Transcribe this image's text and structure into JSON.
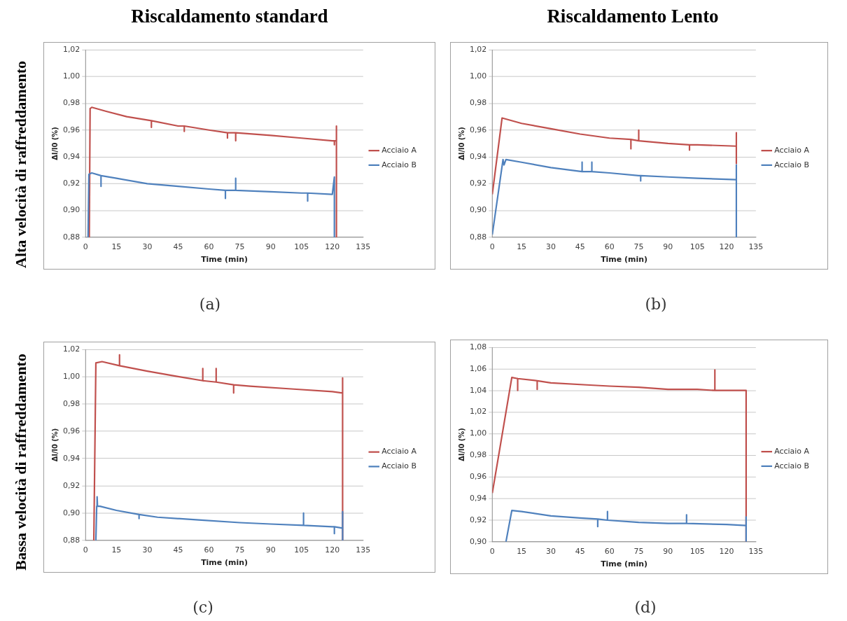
{
  "chart_data": [
    {
      "type": "line",
      "title": "Riscaldamento standard",
      "annotations": [
        "(a)",
        "Alta velocità di raffreddamento"
      ],
      "xlabel": "Time (min)",
      "ylabel": "Δl/l0 (%)",
      "xlim": [
        0,
        135
      ],
      "xticks": [
        0,
        15,
        30,
        45,
        60,
        75,
        90,
        105,
        120,
        135
      ],
      "ylim": [
        0.88,
        1.02
      ],
      "yticks": [
        {
          "value": 0.88,
          "label": "0,88"
        },
        {
          "value": 0.9,
          "label": "0,90"
        },
        {
          "value": 0.92,
          "label": "0,92"
        },
        {
          "value": 0.94,
          "label": "0,94"
        },
        {
          "value": 0.96,
          "label": "0,96"
        },
        {
          "value": 0.98,
          "label": "0,98"
        },
        {
          "value": 1.0,
          "label": "1,00"
        },
        {
          "value": 1.02,
          "label": "1,02"
        }
      ],
      "grid": "y",
      "legend": "right",
      "marker": "none",
      "series": [
        {
          "name": "Acciaio A",
          "color": "#c0504d",
          "x": [
            1.8,
            2.2,
            3,
            10,
            20,
            32,
            32,
            32,
            45,
            48,
            48,
            48,
            60,
            69,
            69,
            69,
            73,
            73,
            73,
            90,
            105,
            120,
            121,
            121,
            121,
            122,
            122,
            122
          ],
          "values": [
            0.88,
            0.976,
            0.977,
            0.974,
            0.97,
            0.967,
            0.962,
            0.967,
            0.963,
            0.963,
            0.959,
            0.963,
            0.96,
            0.958,
            0.954,
            0.958,
            0.958,
            0.952,
            0.958,
            0.956,
            0.954,
            0.952,
            0.952,
            0.949,
            0.952,
            0.952,
            0.963,
            0.88
          ]
        },
        {
          "name": "Acciaio B",
          "color": "#4f81bd",
          "x": [
            1.2,
            1.6,
            3,
            7.5,
            7.5,
            7.5,
            15,
            30,
            45,
            60,
            68,
            68,
            68,
            73,
            73,
            73,
            90,
            105,
            108,
            108,
            108,
            120,
            121,
            121
          ],
          "values": [
            0.88,
            0.927,
            0.928,
            0.926,
            0.918,
            0.926,
            0.924,
            0.92,
            0.918,
            0.916,
            0.915,
            0.909,
            0.915,
            0.915,
            0.924,
            0.915,
            0.914,
            0.913,
            0.913,
            0.907,
            0.913,
            0.912,
            0.925,
            0.88
          ]
        }
      ]
    },
    {
      "type": "line",
      "title": "Riscaldamento Lento",
      "annotations": [
        "(b)"
      ],
      "xlabel": "Time (min)",
      "ylabel": "Δl/l0 (%)",
      "xlim": [
        0,
        135
      ],
      "xticks": [
        0,
        15,
        30,
        45,
        60,
        75,
        90,
        105,
        120,
        135
      ],
      "ylim": [
        0.88,
        1.02
      ],
      "yticks": [
        {
          "value": 0.88,
          "label": "0,88"
        },
        {
          "value": 0.9,
          "label": "0,90"
        },
        {
          "value": 0.92,
          "label": "0,92"
        },
        {
          "value": 0.94,
          "label": "0,94"
        },
        {
          "value": 0.96,
          "label": "0,96"
        },
        {
          "value": 0.98,
          "label": "0,98"
        },
        {
          "value": 1.0,
          "label": "1,00"
        },
        {
          "value": 1.02,
          "label": "1,02"
        }
      ],
      "grid": "y",
      "legend": "right",
      "marker": "none",
      "series": [
        {
          "name": "Acciaio A",
          "color": "#c0504d",
          "x": [
            0,
            5,
            15,
            30,
            45,
            60,
            71,
            71,
            71,
            75,
            75,
            75,
            90,
            101,
            101,
            101,
            105,
            125,
            125,
            125
          ],
          "values": [
            0.912,
            0.969,
            0.965,
            0.961,
            0.957,
            0.954,
            0.953,
            0.946,
            0.953,
            0.952,
            0.96,
            0.952,
            0.95,
            0.949,
            0.945,
            0.949,
            0.949,
            0.948,
            0.958,
            0.935
          ]
        },
        {
          "name": "Acciaio B",
          "color": "#4f81bd",
          "x": [
            0,
            5.5,
            6,
            7,
            15,
            30,
            46,
            46,
            46,
            51,
            51,
            51,
            60,
            75,
            76,
            76,
            76,
            90,
            105,
            125,
            125,
            125
          ],
          "values": [
            0.882,
            0.938,
            0.934,
            0.938,
            0.936,
            0.932,
            0.929,
            0.936,
            0.929,
            0.929,
            0.936,
            0.929,
            0.928,
            0.926,
            0.926,
            0.922,
            0.926,
            0.925,
            0.924,
            0.923,
            0.934,
            0.88
          ]
        }
      ]
    },
    {
      "type": "line",
      "annotations": [
        "(c)",
        "Bassa velocità di raffreddamento"
      ],
      "xlabel": "Time (min)",
      "ylabel": "Δl/l0 (%)",
      "xlim": [
        0,
        135
      ],
      "xticks": [
        0,
        15,
        30,
        45,
        60,
        75,
        90,
        105,
        120,
        135
      ],
      "ylim": [
        0.88,
        1.02
      ],
      "yticks": [
        {
          "value": 0.88,
          "label": "0,88"
        },
        {
          "value": 0.9,
          "label": "0,90"
        },
        {
          "value": 0.92,
          "label": "0,92"
        },
        {
          "value": 0.94,
          "label": "0,94"
        },
        {
          "value": 0.96,
          "label": "0,96"
        },
        {
          "value": 0.98,
          "label": "0,98"
        },
        {
          "value": 1.0,
          "label": "1,00"
        },
        {
          "value": 1.02,
          "label": "1,02"
        }
      ],
      "grid": "y",
      "legend": "right",
      "marker": "none",
      "series": [
        {
          "name": "Acciaio A",
          "color": "#c0504d",
          "x": [
            4,
            5,
            8,
            16.5,
            16.5,
            16.5,
            30,
            45,
            57,
            57,
            57,
            63.5,
            63.5,
            63.5,
            72,
            72,
            72,
            80,
            100,
            120,
            125,
            125,
            125
          ],
          "values": [
            0.88,
            1.01,
            1.011,
            1.008,
            1.016,
            1.008,
            1.004,
            1.0,
            0.997,
            1.006,
            0.997,
            0.996,
            1.006,
            0.996,
            0.994,
            0.988,
            0.994,
            0.993,
            0.991,
            0.989,
            0.988,
            0.999,
            0.88
          ]
        },
        {
          "name": "Acciaio B",
          "color": "#4f81bd",
          "x": [
            5,
            5.4,
            5.6,
            5.8,
            7,
            15,
            26,
            26,
            26,
            35,
            55,
            75,
            90,
            106,
            106,
            106,
            120,
            121,
            121,
            121,
            125,
            125,
            125
          ],
          "values": [
            0.88,
            0.905,
            0.912,
            0.905,
            0.905,
            0.902,
            0.899,
            0.896,
            0.899,
            0.897,
            0.895,
            0.893,
            0.892,
            0.891,
            0.9,
            0.891,
            0.89,
            0.89,
            0.885,
            0.89,
            0.889,
            0.901,
            0.88
          ]
        }
      ]
    },
    {
      "type": "line",
      "annotations": [
        "(d)"
      ],
      "xlabel": "Time (min)",
      "ylabel": "Δl/l0 (%)",
      "xlim": [
        0,
        135
      ],
      "xticks": [
        0,
        15,
        30,
        45,
        60,
        75,
        90,
        105,
        120,
        135
      ],
      "ylim": [
        0.9,
        1.08
      ],
      "yticks": [
        {
          "value": 0.9,
          "label": "0,90"
        },
        {
          "value": 0.92,
          "label": "0,92"
        },
        {
          "value": 0.94,
          "label": "0,94"
        },
        {
          "value": 0.96,
          "label": "0,96"
        },
        {
          "value": 0.98,
          "label": "0,98"
        },
        {
          "value": 1.0,
          "label": "1,00"
        },
        {
          "value": 1.02,
          "label": "1,02"
        },
        {
          "value": 1.04,
          "label": "1,04"
        },
        {
          "value": 1.06,
          "label": "1,06"
        },
        {
          "value": 1.08,
          "label": "1,08"
        }
      ],
      "grid": "y",
      "legend": "right",
      "marker": "none",
      "series": [
        {
          "name": "Acciaio A",
          "color": "#c0504d",
          "x": [
            0,
            10,
            13,
            13,
            13,
            23,
            23,
            23,
            30,
            50,
            60,
            75,
            90,
            105,
            114,
            114,
            114,
            120,
            130,
            130
          ],
          "values": [
            0.945,
            1.052,
            1.051,
            1.04,
            1.051,
            1.049,
            1.041,
            1.049,
            1.047,
            1.045,
            1.044,
            1.043,
            1.041,
            1.041,
            1.04,
            1.059,
            1.04,
            1.04,
            1.04,
            0.9
          ]
        },
        {
          "name": "Acciaio B",
          "color": "#4f81bd",
          "x": [
            7,
            10,
            15,
            30,
            45,
            54,
            54,
            54,
            59,
            59,
            59,
            75,
            90,
            99.5,
            99.5,
            99.5,
            120,
            130,
            130,
            130
          ],
          "values": [
            0.9,
            0.929,
            0.928,
            0.924,
            0.922,
            0.921,
            0.914,
            0.921,
            0.92,
            0.928,
            0.92,
            0.918,
            0.917,
            0.917,
            0.925,
            0.917,
            0.916,
            0.915,
            0.923,
            0.9
          ]
        }
      ]
    }
  ]
}
